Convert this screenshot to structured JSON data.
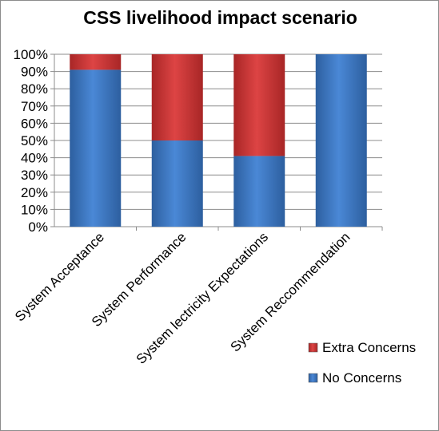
{
  "chart_data": {
    "type": "stacked-bar-100",
    "title": "CSS livelihood impact scenario",
    "categories": [
      "System Acceptance",
      "System Performance",
      "System lectricity Expectations",
      "System Reccommendation"
    ],
    "series": [
      {
        "name": "No Concerns",
        "color": "#3a76c4",
        "values": [
          91,
          50,
          41,
          100
        ]
      },
      {
        "name": "Extra Concerns",
        "color": "#cc3333",
        "values": [
          9,
          50,
          59,
          0
        ]
      }
    ],
    "ylim": [
      0,
      100
    ],
    "yticks": [
      "0%",
      "10%",
      "20%",
      "30%",
      "40%",
      "50%",
      "60%",
      "70%",
      "80%",
      "90%",
      "100%"
    ],
    "legend_position": "bottom-right",
    "legend_order": [
      "Extra Concerns",
      "No Concerns"
    ],
    "grid": true
  }
}
